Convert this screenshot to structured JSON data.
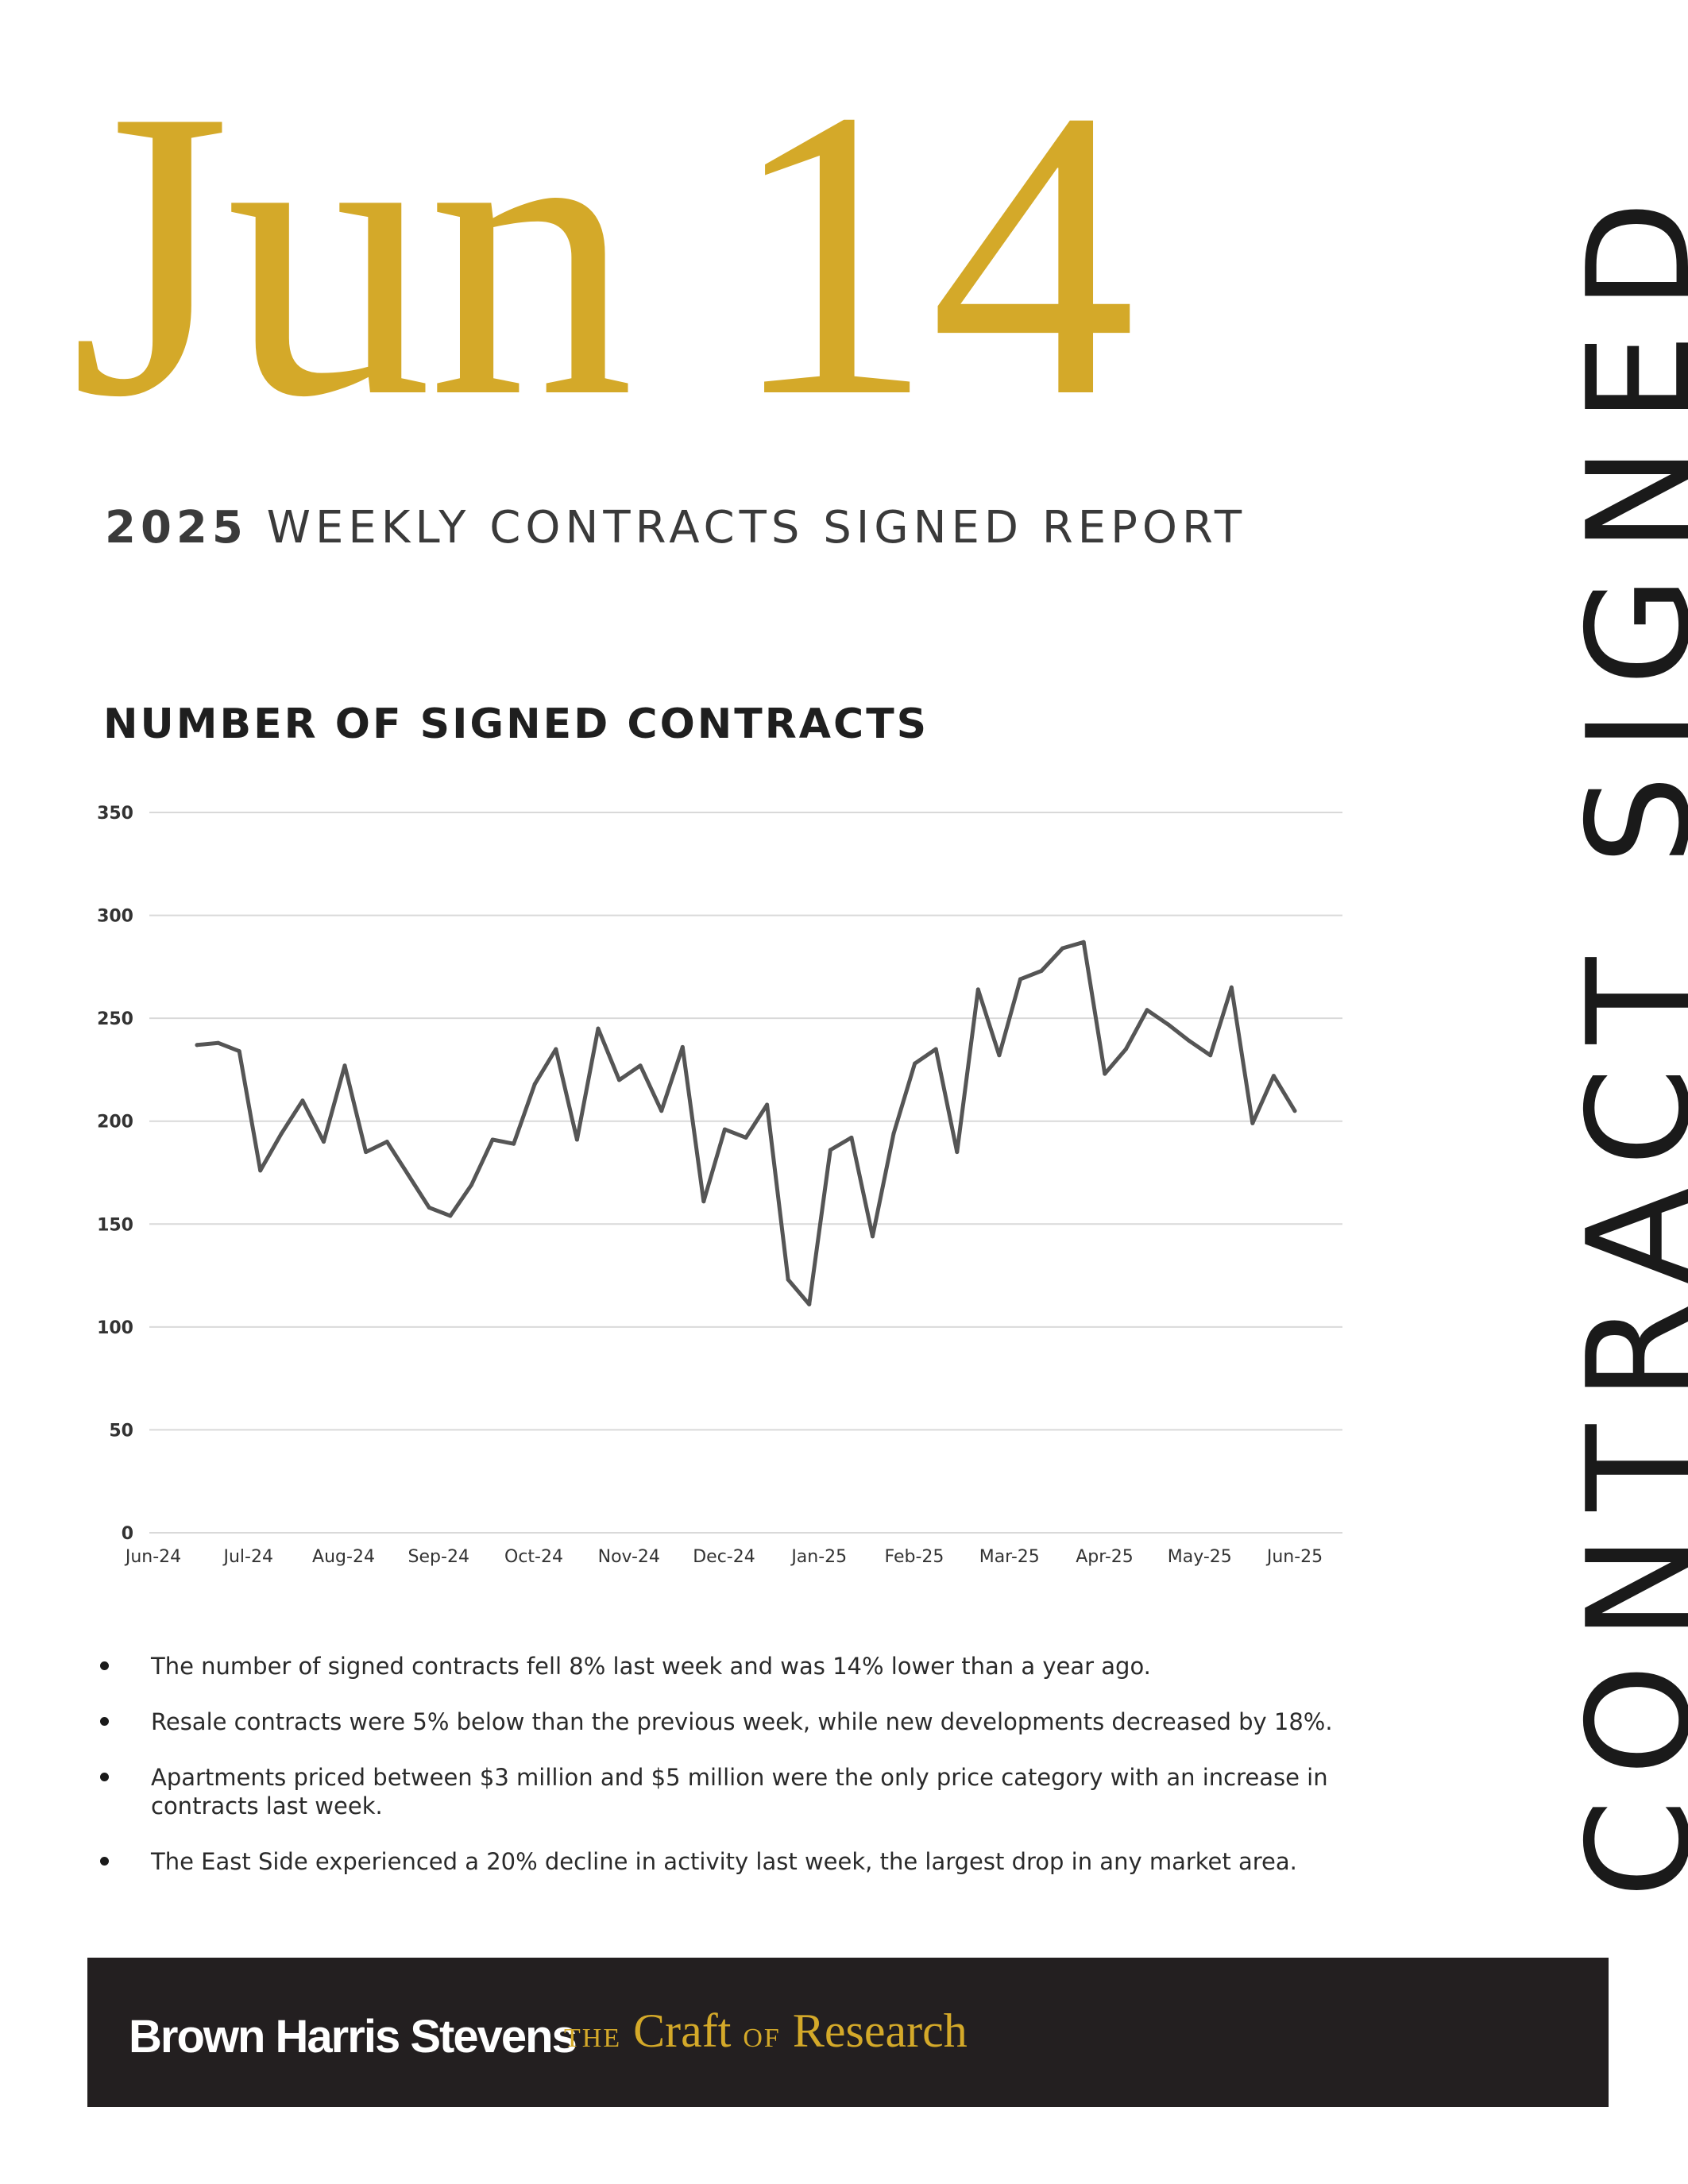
{
  "header": {
    "date_display": "Jun 14",
    "report_year": "2025",
    "report_title": "WEEKLY CONTRACTS SIGNED REPORT",
    "side_title": "CONTRACT SIGNED"
  },
  "chart_heading": "NUMBER OF SIGNED CONTRACTS",
  "chart_data": {
    "type": "line",
    "title": "NUMBER OF SIGNED CONTRACTS",
    "xlabel": "",
    "ylabel": "",
    "ylim": [
      0,
      350
    ],
    "y_ticks": [
      "0",
      "50",
      "100",
      "150",
      "200",
      "250",
      "300",
      "350"
    ],
    "x_tick_labels": [
      "Jun-24",
      "Jul-24",
      "Aug-24",
      "Sep-24",
      "Oct-24",
      "Nov-24",
      "Dec-24",
      "Jan-25",
      "Feb-25",
      "Mar-25",
      "Apr-25",
      "May-25",
      "Jun-25"
    ],
    "grid": true,
    "line_color": "#555555",
    "series": [
      {
        "values": [
          237,
          238,
          234,
          176,
          194,
          210,
          190,
          227,
          185,
          190,
          174,
          158,
          154,
          169,
          191,
          189,
          218,
          235,
          191,
          245,
          220,
          227,
          205,
          236,
          161,
          196,
          192,
          208,
          123,
          111,
          186,
          192,
          144,
          194,
          228,
          235,
          185,
          264,
          232,
          269,
          273,
          284,
          287,
          223,
          235,
          254,
          247,
          239,
          232,
          265,
          199,
          222,
          205
        ]
      }
    ]
  },
  "bullets": [
    "The number of signed contracts fell 8% last week and was 14% lower than a year ago.",
    "Resale contracts were 5% below than the previous week, while new developments decreased by 18%.",
    "Apartments priced between $3 million and $5 million were the only price category with an increase in contracts last week.",
    "The East Side experienced a 20% decline in activity last week, the largest drop in any market area."
  ],
  "footer": {
    "brand": "Brown Harris Stevens",
    "tagline_the": "THE",
    "tagline_craft": "Craft",
    "tagline_of": "OF",
    "tagline_research": "Research"
  },
  "colors": {
    "gold": "#d4a929",
    "footer_bg": "#231f20",
    "text_dark": "#1a1a1a"
  }
}
